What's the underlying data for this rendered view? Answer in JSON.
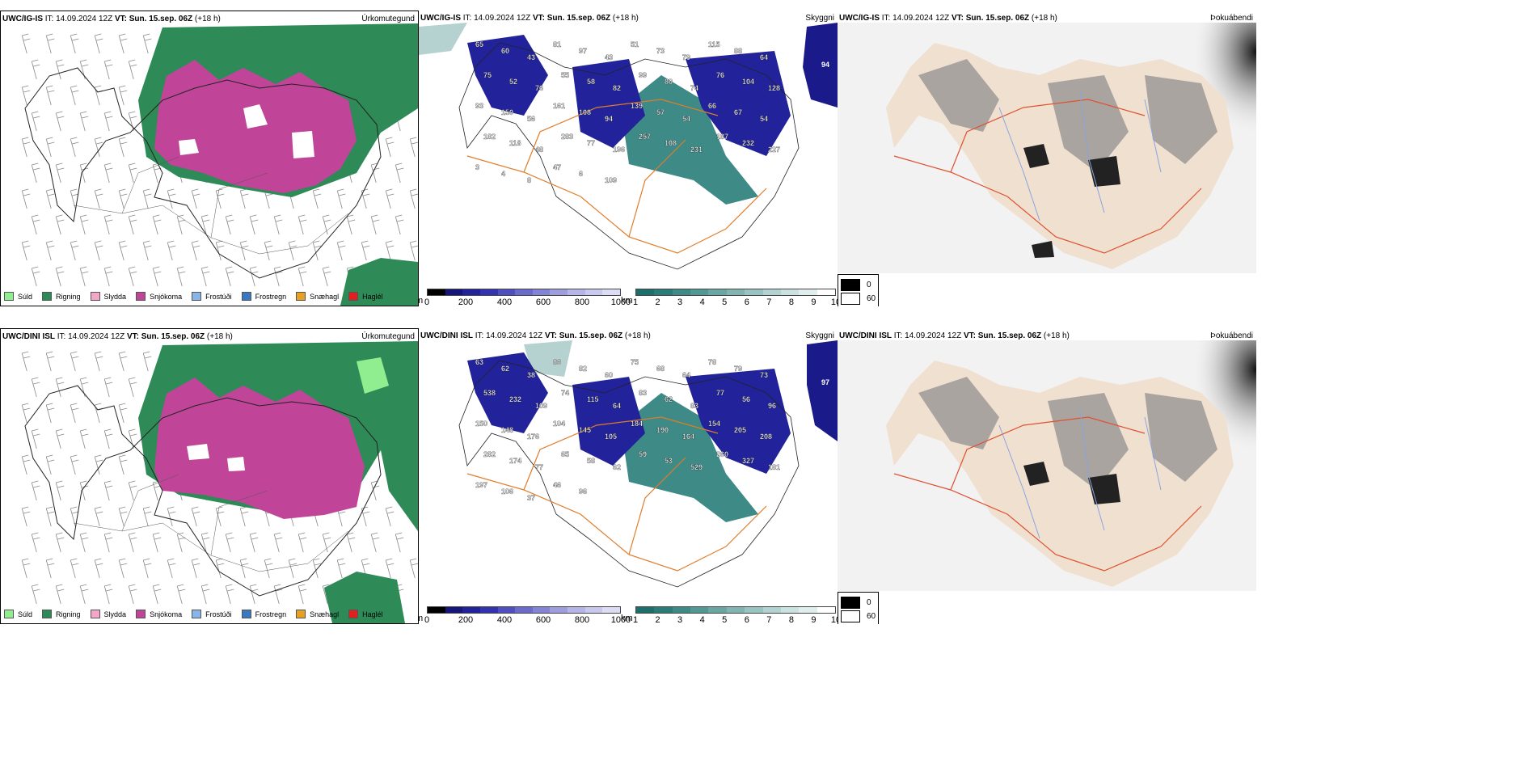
{
  "rows": [
    {
      "model": "UWC/IG-IS",
      "init": "IT: 14.09.2024 12Z",
      "valid": "VT: Sun. 15.sep. 06Z",
      "lead": "(+18 h)",
      "summit_max": "94",
      "summits": [
        "65",
        "60",
        "43",
        "81",
        "97",
        "43",
        "51",
        "73",
        "79",
        "115",
        "88",
        "64",
        "75",
        "52",
        "76",
        "55",
        "58",
        "82",
        "99",
        "80",
        "74",
        "76",
        "104",
        "128",
        "93",
        "150",
        "56",
        "161",
        "108",
        "94",
        "139",
        "57",
        "54",
        "66",
        "67",
        "54",
        "182",
        "118",
        "48",
        "283",
        "77",
        "196",
        "257",
        "108",
        "231",
        "187",
        "232",
        "227",
        "3",
        "4",
        "8",
        "47",
        "6",
        "109"
      ]
    },
    {
      "model": "UWC/DINI ISL",
      "init": "IT: 14.09.2024 12Z",
      "valid": "VT: Sun. 15.sep. 06Z",
      "lead": "(+18 h)",
      "summit_max": "97",
      "summits": [
        "63",
        "62",
        "38",
        "86",
        "82",
        "60",
        "75",
        "68",
        "64",
        "78",
        "79",
        "73",
        "538",
        "232",
        "109",
        "74",
        "115",
        "64",
        "83",
        "62",
        "83",
        "77",
        "56",
        "96",
        "150",
        "148",
        "176",
        "104",
        "145",
        "105",
        "184",
        "190",
        "164",
        "154",
        "205",
        "208",
        "282",
        "174",
        "77",
        "65",
        "58",
        "62",
        "59",
        "53",
        "529",
        "260",
        "327",
        "181",
        "197",
        "106",
        "37",
        "46",
        "96"
      ]
    }
  ],
  "panels": {
    "precip_label": "Úrkomutegund",
    "visibility_label": "Skyggni",
    "fog_label": "Þokuábendi"
  },
  "precip_legend": [
    {
      "label": "Súld",
      "color": "#90ee90"
    },
    {
      "label": "Rigning",
      "color": "#2e8b57"
    },
    {
      "label": "Slydda",
      "color": "#f4a6c8"
    },
    {
      "label": "Snjókoma",
      "color": "#c04598"
    },
    {
      "label": "Frostúði",
      "color": "#87b5ea"
    },
    {
      "label": "Frostregn",
      "color": "#3a78c0"
    },
    {
      "label": "Snæhagl",
      "color": "#e8a020"
    },
    {
      "label": "Haglél",
      "color": "#e02020"
    }
  ],
  "elev_bar": {
    "unit": "m",
    "ticks": [
      "0",
      "200",
      "400",
      "600",
      "800",
      "1000"
    ],
    "colors": [
      "#000000",
      "#15157a",
      "#22229a",
      "#3333b0",
      "#4f4fbf",
      "#6b6bcc",
      "#8484d6",
      "#9e9edf",
      "#b5b5e8",
      "#c9c9ef",
      "#dcdcf4"
    ]
  },
  "vis_bar": {
    "unit": "km",
    "ticks": [
      "1",
      "2",
      "3",
      "4",
      "5",
      "6",
      "7",
      "8",
      "9",
      "10"
    ],
    "colors": [
      "#1b6f6c",
      "#2a7c78",
      "#3d8a86",
      "#529894",
      "#6aa7a3",
      "#82b5b2",
      "#9ac4c1",
      "#b2d3d1",
      "#cae2e0",
      "#e0efee",
      "#ffffff"
    ]
  },
  "fog_legend": [
    "0",
    "60"
  ]
}
